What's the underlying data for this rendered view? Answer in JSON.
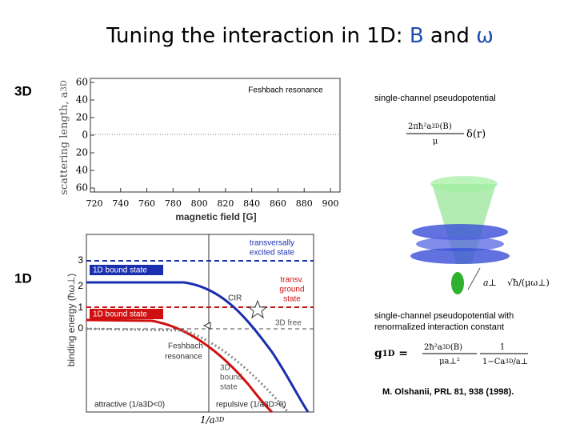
{
  "title": {
    "prefix": "Tuning  the interaction in 1D: ",
    "b": "B",
    "and": " and ",
    "omega": "ω"
  },
  "labels": {
    "d3": "3D",
    "d1": "1D"
  },
  "top_figure": {
    "y_label": "scattering length, a",
    "y_label_sub": "3D",
    "x_label": "magnetic field [G]",
    "annotation": "Feshbach resonance",
    "yticks": [
      "60",
      "40",
      "20",
      "0",
      "20",
      "40",
      "60"
    ],
    "xticks": [
      "720",
      "740",
      "760",
      "780",
      "800",
      "820",
      "840",
      "860",
      "880",
      "900"
    ]
  },
  "right": {
    "caption1": "single-channel  pseudopotential",
    "formula1": {
      "num": "2πħ²a",
      "sub": "3D",
      "arg": "(B)",
      "den": "μ",
      "delta": "δ(r)"
    },
    "trap": {
      "a_perp": "a⊥",
      "length": "√ħ/(μω⊥)"
    },
    "caption2_line1": "single-channel  pseudopotential with",
    "caption2_line2": "renormalized interaction constant",
    "formula2": {
      "lhs": "g",
      "lhs_sub": "1D",
      "eq": " = ",
      "num": "2ħ²a",
      "sub": "3D",
      "arg": "(B)",
      "den": "μa⊥²",
      "num2": "1",
      "den2": "1−Ca",
      "den2_sub": "3D",
      "den2_tail": "/a⊥"
    },
    "citation": "M. Olshanii, PRL 81, 938 (1998)."
  },
  "bottom_figure": {
    "y_label": "binding energy (ħω⊥)",
    "x_label": "1/a",
    "x_label_sub": "3D",
    "yticks": [
      "3",
      "2",
      "1",
      "0"
    ],
    "excited_1": "transversally",
    "excited_2": "excited state",
    "bound_top": "1D bound state",
    "ground_1": "transv.",
    "ground_2": "ground",
    "ground_3": "state",
    "cir": "CIR",
    "bound_low": "1D bound state",
    "free": "3D free",
    "feshbach_1": "Feshbach",
    "feshbach_2": "resonance",
    "bound3d_1": "3D",
    "bound3d_2": "bound",
    "bound3d_3": "state",
    "attractive": "attractive (1/a3D<0)",
    "repulsive": "repulsive (1/a3D>0)"
  }
}
